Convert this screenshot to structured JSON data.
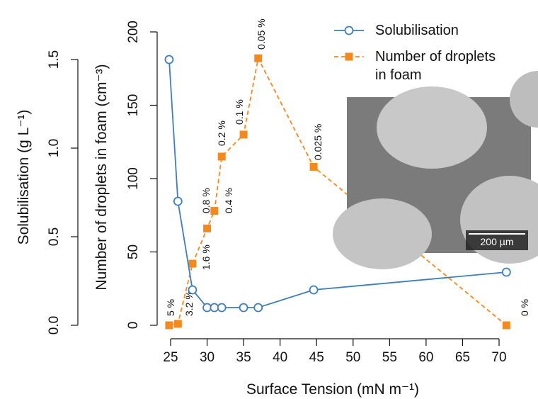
{
  "chart_data": {
    "type": "line",
    "xlabel": "Surface Tension (mN m⁻¹)",
    "ylabel": "Solubilisation (g L⁻¹)",
    "y2label": "Number of droplets in foam (cm⁻³)",
    "xlim": [
      25,
      70
    ],
    "xticks": [
      25,
      30,
      35,
      40,
      45,
      50,
      55,
      60,
      65,
      70
    ],
    "ylim": [
      0,
      1.5
    ],
    "yticks": [
      {
        "value": 0,
        "label": "0.0"
      },
      0.5,
      {
        "value": 1,
        "label": "1.0"
      },
      1.5
    ],
    "y2lim": [
      0,
      200
    ],
    "y2ticks": [
      0,
      50,
      100,
      150,
      200
    ],
    "legend": "top-right",
    "series": [
      {
        "name": "Solubilisation",
        "color": "#3d7ebb",
        "marker": "circle",
        "x": [
          24.8,
          26,
          28,
          30,
          31,
          32,
          35,
          37,
          44.6,
          71
        ],
        "values": [
          1.5,
          0.7,
          0.2,
          0.1,
          0.1,
          0.1,
          0.1,
          0.1,
          0.2,
          0.3
        ]
      },
      {
        "name": "Number of droplets in foam",
        "color": "#f28a1e",
        "marker": "square",
        "dash": true,
        "axis": "y2",
        "x": [
          24.8,
          26,
          28,
          30,
          31,
          32,
          35,
          37,
          44.6,
          71
        ],
        "values": [
          0,
          1,
          42,
          66,
          78,
          115,
          130,
          182,
          108,
          0
        ],
        "annotations": [
          "5 %",
          "3.2 %",
          "1.6 %",
          "0.8 %",
          "0.4 %",
          "0.2 %",
          "0.1 %",
          "0.05 %",
          "0.025 %",
          "0 %"
        ]
      }
    ],
    "inset": {
      "scale_bar": "200 µm"
    }
  }
}
